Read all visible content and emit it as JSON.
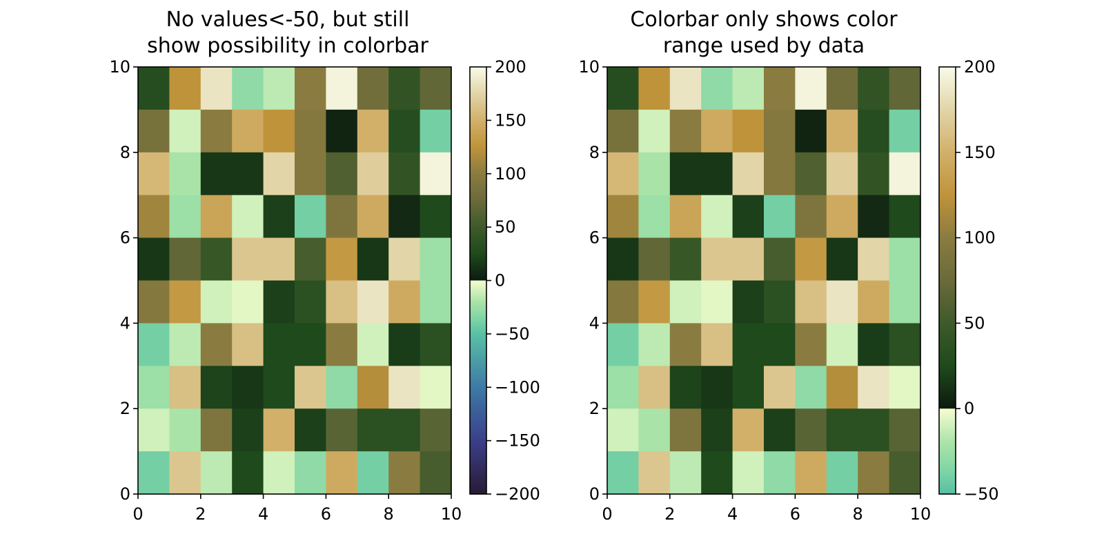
{
  "chart_data": [
    {
      "type": "heatmap",
      "title_lines": [
        "No values<-50, but still",
        "show possibility in colorbar"
      ],
      "xlim": [
        0,
        10
      ],
      "ylim": [
        0,
        10
      ],
      "x_ticks": [
        "0",
        "2",
        "4",
        "6",
        "8",
        "10"
      ],
      "y_ticks": [
        "0",
        "2",
        "4",
        "6",
        "8",
        "10"
      ],
      "colorbar": {
        "range": [
          -200,
          200
        ],
        "ticks": [
          200,
          150,
          100,
          50,
          0,
          -50,
          -100,
          -150,
          -200
        ],
        "tick_labels": [
          "200",
          "150",
          "100",
          "50",
          "0",
          "−50",
          "−100",
          "−150",
          "−200"
        ]
      }
    },
    {
      "type": "heatmap",
      "title_lines": [
        "Colorbar only shows color",
        "range used by data"
      ],
      "xlim": [
        0,
        10
      ],
      "ylim": [
        0,
        10
      ],
      "x_ticks": [
        "0",
        "2",
        "4",
        "6",
        "8",
        "10"
      ],
      "y_ticks": [
        "0",
        "2",
        "4",
        "6",
        "8",
        "10"
      ],
      "colorbar": {
        "range": [
          -50,
          200
        ],
        "ticks": [
          200,
          150,
          100,
          50,
          0,
          -50
        ],
        "tick_labels": [
          "200",
          "150",
          "100",
          "50",
          "0",
          "−50"
        ]
      }
    }
  ],
  "grid_values_top_to_bottom": [
    [
      30,
      125,
      185,
      -30,
      -15,
      100,
      195,
      80,
      40,
      70
    ],
    [
      85,
      -10,
      100,
      145,
      125,
      95,
      5,
      150,
      30,
      -40
    ],
    [
      155,
      -20,
      15,
      15,
      175,
      95,
      60,
      170,
      40,
      195
    ],
    [
      110,
      -25,
      140,
      -10,
      20,
      -40,
      90,
      145,
      8,
      25
    ],
    [
      15,
      70,
      45,
      165,
      165,
      55,
      130,
      15,
      175,
      -25
    ],
    [
      95,
      130,
      -10,
      -5,
      20,
      35,
      160,
      185,
      145,
      -25
    ],
    [
      -40,
      -15,
      100,
      160,
      25,
      25,
      100,
      -10,
      18,
      35
    ],
    [
      -25,
      160,
      22,
      15,
      25,
      165,
      -30,
      120,
      185,
      -5
    ],
    [
      -10,
      -20,
      90,
      20,
      150,
      20,
      65,
      35,
      35,
      65
    ],
    [
      -40,
      165,
      -15,
      25,
      -10,
      -30,
      145,
      -40,
      100,
      55
    ]
  ],
  "colormap": {
    "negative_stops": [
      {
        "v": -200,
        "c": "#2a1a35"
      },
      {
        "v": -150,
        "c": "#3b3f8a"
      },
      {
        "v": -100,
        "c": "#3e7aa6"
      },
      {
        "v": -50,
        "c": "#58c0a5"
      },
      {
        "v": -35,
        "c": "#82d6a5"
      },
      {
        "v": -20,
        "c": "#a9e3a8"
      },
      {
        "v": 0,
        "c": "#f6fdcf"
      }
    ],
    "positive_stops": [
      {
        "v": 0,
        "c": "#0d1a10"
      },
      {
        "v": 25,
        "c": "#1f4a1c"
      },
      {
        "v": 50,
        "c": "#3e5a2a"
      },
      {
        "v": 75,
        "c": "#6b6a3a"
      },
      {
        "v": 100,
        "c": "#8a7c40"
      },
      {
        "v": 125,
        "c": "#bf933a"
      },
      {
        "v": 150,
        "c": "#d2b06a"
      },
      {
        "v": 175,
        "c": "#e2d5a8"
      },
      {
        "v": 200,
        "c": "#f8fbe8"
      }
    ]
  }
}
